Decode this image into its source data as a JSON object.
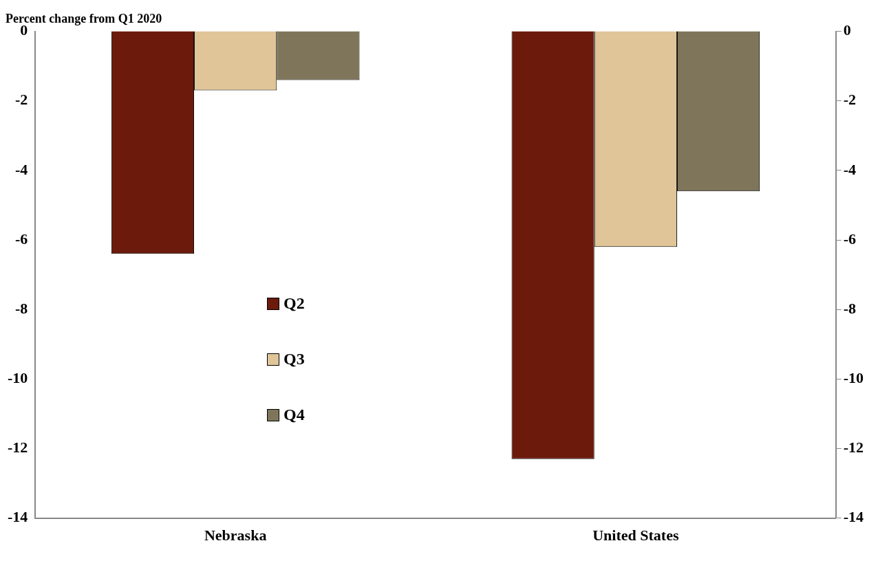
{
  "chart_data": {
    "type": "bar",
    "title": "Percent change from Q1 2020",
    "categories": [
      "Nebraska",
      "United States"
    ],
    "series": [
      {
        "name": "Q2",
        "color": "#6b1a0c",
        "values": [
          -6.4,
          -12.3
        ]
      },
      {
        "name": "Q3",
        "color": "#dfc597",
        "values": [
          -1.7,
          -6.2
        ]
      },
      {
        "name": "Q4",
        "color": "#7f755a",
        "values": [
          -1.4,
          -4.6
        ]
      }
    ],
    "ylim": [
      -14,
      0
    ],
    "yticks": [
      -14,
      -12,
      -10,
      -8,
      -6,
      -4,
      -2,
      0
    ],
    "y2lim": [
      -14,
      0
    ],
    "y2ticks": [
      -14,
      -12,
      -10,
      -8,
      -6,
      -4,
      -2,
      0
    ],
    "grid": false,
    "legend": "left"
  }
}
